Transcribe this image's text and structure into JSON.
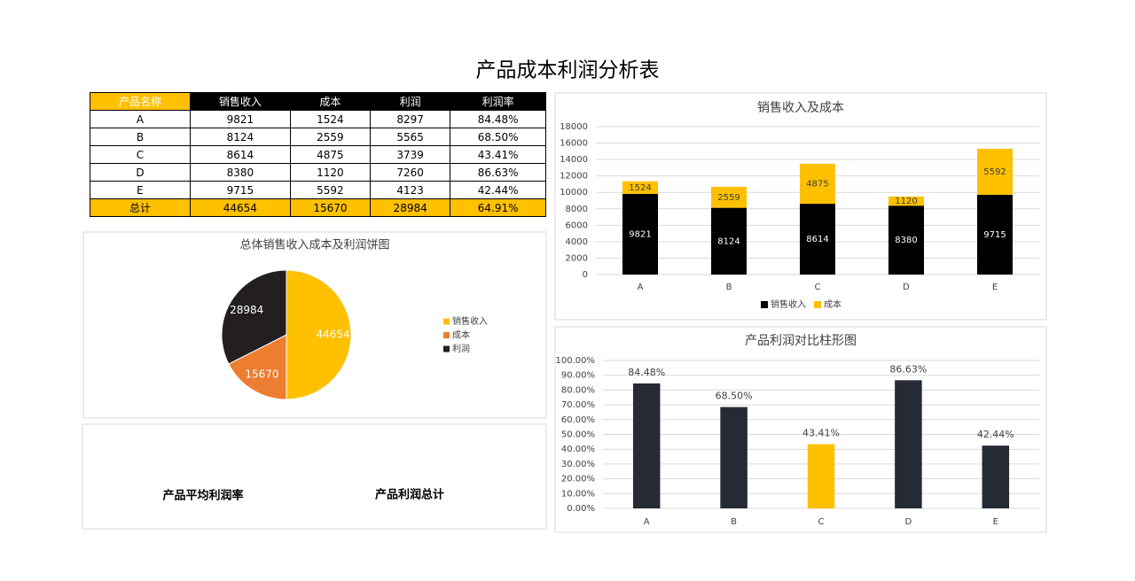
{
  "title": "产品成本利润分析表",
  "table": {
    "header": [
      "产品名称",
      "销售收入",
      "成本",
      "利润",
      "利润率"
    ],
    "rows": [
      [
        "A",
        "9821",
        "1524",
        "8297",
        "84.48%"
      ],
      [
        "B",
        "8124",
        "2559",
        "5565",
        "68.50%"
      ],
      [
        "C",
        "8614",
        "4875",
        "3739",
        "43.41%"
      ],
      [
        "D",
        "8380",
        "1120",
        "7260",
        "86.63%"
      ],
      [
        "E",
        "9715",
        "5592",
        "4123",
        "42.44%"
      ]
    ],
    "total": [
      "总计",
      "44654",
      "15670",
      "28984",
      "64.91%"
    ]
  },
  "chart_data": [
    {
      "type": "bar",
      "stacked": true,
      "title": "销售收入及成本",
      "categories": [
        "A",
        "B",
        "C",
        "D",
        "E"
      ],
      "series": [
        {
          "name": "销售收入",
          "color": "#000000",
          "values": [
            9821,
            8124,
            8614,
            8380,
            9715
          ]
        },
        {
          "name": "成本",
          "color": "#FFC000",
          "values": [
            1524,
            2559,
            4875,
            1120,
            5592
          ]
        }
      ],
      "ylim": [
        0,
        18000
      ],
      "yticks": [
        0,
        2000,
        4000,
        6000,
        8000,
        10000,
        12000,
        14000,
        16000,
        18000
      ],
      "grid": true,
      "legend": "bottom"
    },
    {
      "type": "pie",
      "title": "总体销售收入成本及利润饼图",
      "categories": [
        "销售收入",
        "成本",
        "利润"
      ],
      "values": [
        44654,
        15670,
        28984
      ],
      "colors": [
        "#FFC000",
        "#ED7D31",
        "#231F20"
      ],
      "legend": "right"
    },
    {
      "type": "bar",
      "title": "产品利润对比柱形图",
      "categories": [
        "A",
        "B",
        "C",
        "D",
        "E"
      ],
      "values": [
        84.48,
        68.5,
        43.41,
        86.63,
        42.44
      ],
      "value_labels": [
        "84.48%",
        "68.50%",
        "43.41%",
        "86.63%",
        "42.44%"
      ],
      "colors": [
        "#252A34",
        "#252A34",
        "#FFC000",
        "#252A34",
        "#252A34"
      ],
      "ylim": [
        0,
        100
      ],
      "yticks": [
        {
          "value": 0,
          "label": "0.00%"
        },
        {
          "value": 10,
          "label": "10.00%"
        },
        {
          "value": 20,
          "label": "20.00%"
        },
        {
          "value": 30,
          "label": "30.00%"
        },
        {
          "value": 40,
          "label": "40.00%"
        },
        {
          "value": 50,
          "label": "50.00%"
        },
        {
          "value": 60,
          "label": "60.00%"
        },
        {
          "value": 70,
          "label": "70.00%"
        },
        {
          "value": 80,
          "label": "80.00%"
        },
        {
          "value": 90,
          "label": "90.00%"
        },
        {
          "value": 100,
          "label": "100.00%"
        }
      ],
      "grid": true
    }
  ],
  "footer": {
    "labels": [
      "产品平均利润率",
      "产品利润总计"
    ]
  }
}
